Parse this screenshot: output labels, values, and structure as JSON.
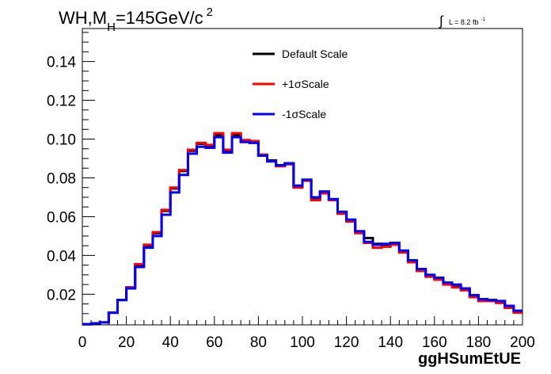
{
  "header": {
    "title_main": "WH,M",
    "title_sub": "H",
    "title_rest": "=145GeV/c",
    "title_sup": "2",
    "lumi_integral": "∫",
    "lumi_text": "L = 8.2 fb",
    "lumi_sup": "-1"
  },
  "chart_data": {
    "type": "line",
    "step": true,
    "xlabel": "ggHSumEtUE",
    "ylabel": "",
    "xlim": [
      0,
      200
    ],
    "ylim": [
      0.0042,
      0.157
    ],
    "xticks": [
      0,
      20,
      40,
      60,
      80,
      100,
      120,
      140,
      160,
      180,
      200
    ],
    "yticks": [
      0.02,
      0.04,
      0.06,
      0.08,
      0.1,
      0.12,
      0.14
    ],
    "ytick_labels": [
      "0.02",
      "0.04",
      "0.06",
      "0.08",
      "0.10",
      "0.12",
      "0.14"
    ],
    "xtick_labels": [
      "0",
      "20",
      "40",
      "60",
      "80",
      "100",
      "120",
      "140",
      "160",
      "180",
      "200"
    ],
    "grid": false,
    "legend_position": "top-center",
    "bin_edges": [
      0,
      4,
      8,
      12,
      16,
      20,
      24,
      28,
      32,
      36,
      40,
      44,
      48,
      52,
      56,
      60,
      64,
      68,
      72,
      76,
      80,
      84,
      88,
      92,
      96,
      100,
      104,
      108,
      112,
      116,
      120,
      124,
      128,
      132,
      136,
      140,
      144,
      148,
      152,
      156,
      160,
      164,
      168,
      172,
      176,
      180,
      184,
      188,
      192,
      196,
      200
    ],
    "series": [
      {
        "name": "Default Scale",
        "color": "#000000",
        "values": [
          0.0045,
          0.005,
          0.0055,
          0.0105,
          0.017,
          0.0235,
          0.035,
          0.045,
          0.0515,
          0.063,
          0.0745,
          0.0835,
          0.094,
          0.0975,
          0.0965,
          0.102,
          0.094,
          0.102,
          0.099,
          0.0985,
          0.0915,
          0.089,
          0.0865,
          0.0875,
          0.0755,
          0.079,
          0.069,
          0.0725,
          0.069,
          0.062,
          0.058,
          0.052,
          0.049,
          0.046,
          0.045,
          0.046,
          0.042,
          0.037,
          0.0325,
          0.0295,
          0.028,
          0.0255,
          0.024,
          0.0225,
          0.019,
          0.017,
          0.017,
          0.016,
          0.0135,
          0.011
        ]
      },
      {
        "name": "+1σScale",
        "color": "#ff0000",
        "values": [
          0.0045,
          0.005,
          0.0055,
          0.0105,
          0.017,
          0.0235,
          0.0355,
          0.0455,
          0.052,
          0.0635,
          0.075,
          0.084,
          0.0945,
          0.098,
          0.097,
          0.103,
          0.0945,
          0.103,
          0.0995,
          0.099,
          0.092,
          0.0885,
          0.086,
          0.087,
          0.075,
          0.0785,
          0.0685,
          0.072,
          0.0685,
          0.0615,
          0.0575,
          0.0515,
          0.0465,
          0.044,
          0.0445,
          0.0455,
          0.0415,
          0.0365,
          0.032,
          0.029,
          0.0275,
          0.025,
          0.0235,
          0.022,
          0.0185,
          0.0165,
          0.0165,
          0.0155,
          0.013,
          0.0105
        ]
      },
      {
        "name": "-1σScale",
        "color": "#0000ff",
        "values": [
          0.0045,
          0.005,
          0.0055,
          0.0105,
          0.017,
          0.023,
          0.034,
          0.044,
          0.05,
          0.061,
          0.0725,
          0.0815,
          0.0925,
          0.096,
          0.0955,
          0.101,
          0.093,
          0.101,
          0.0985,
          0.098,
          0.0915,
          0.0885,
          0.0865,
          0.0875,
          0.076,
          0.079,
          0.07,
          0.073,
          0.069,
          0.0625,
          0.0585,
          0.0525,
          0.047,
          0.0455,
          0.046,
          0.0465,
          0.0425,
          0.0375,
          0.033,
          0.03,
          0.0285,
          0.026,
          0.025,
          0.023,
          0.0195,
          0.0175,
          0.017,
          0.0165,
          0.014,
          0.0115
        ]
      }
    ]
  }
}
